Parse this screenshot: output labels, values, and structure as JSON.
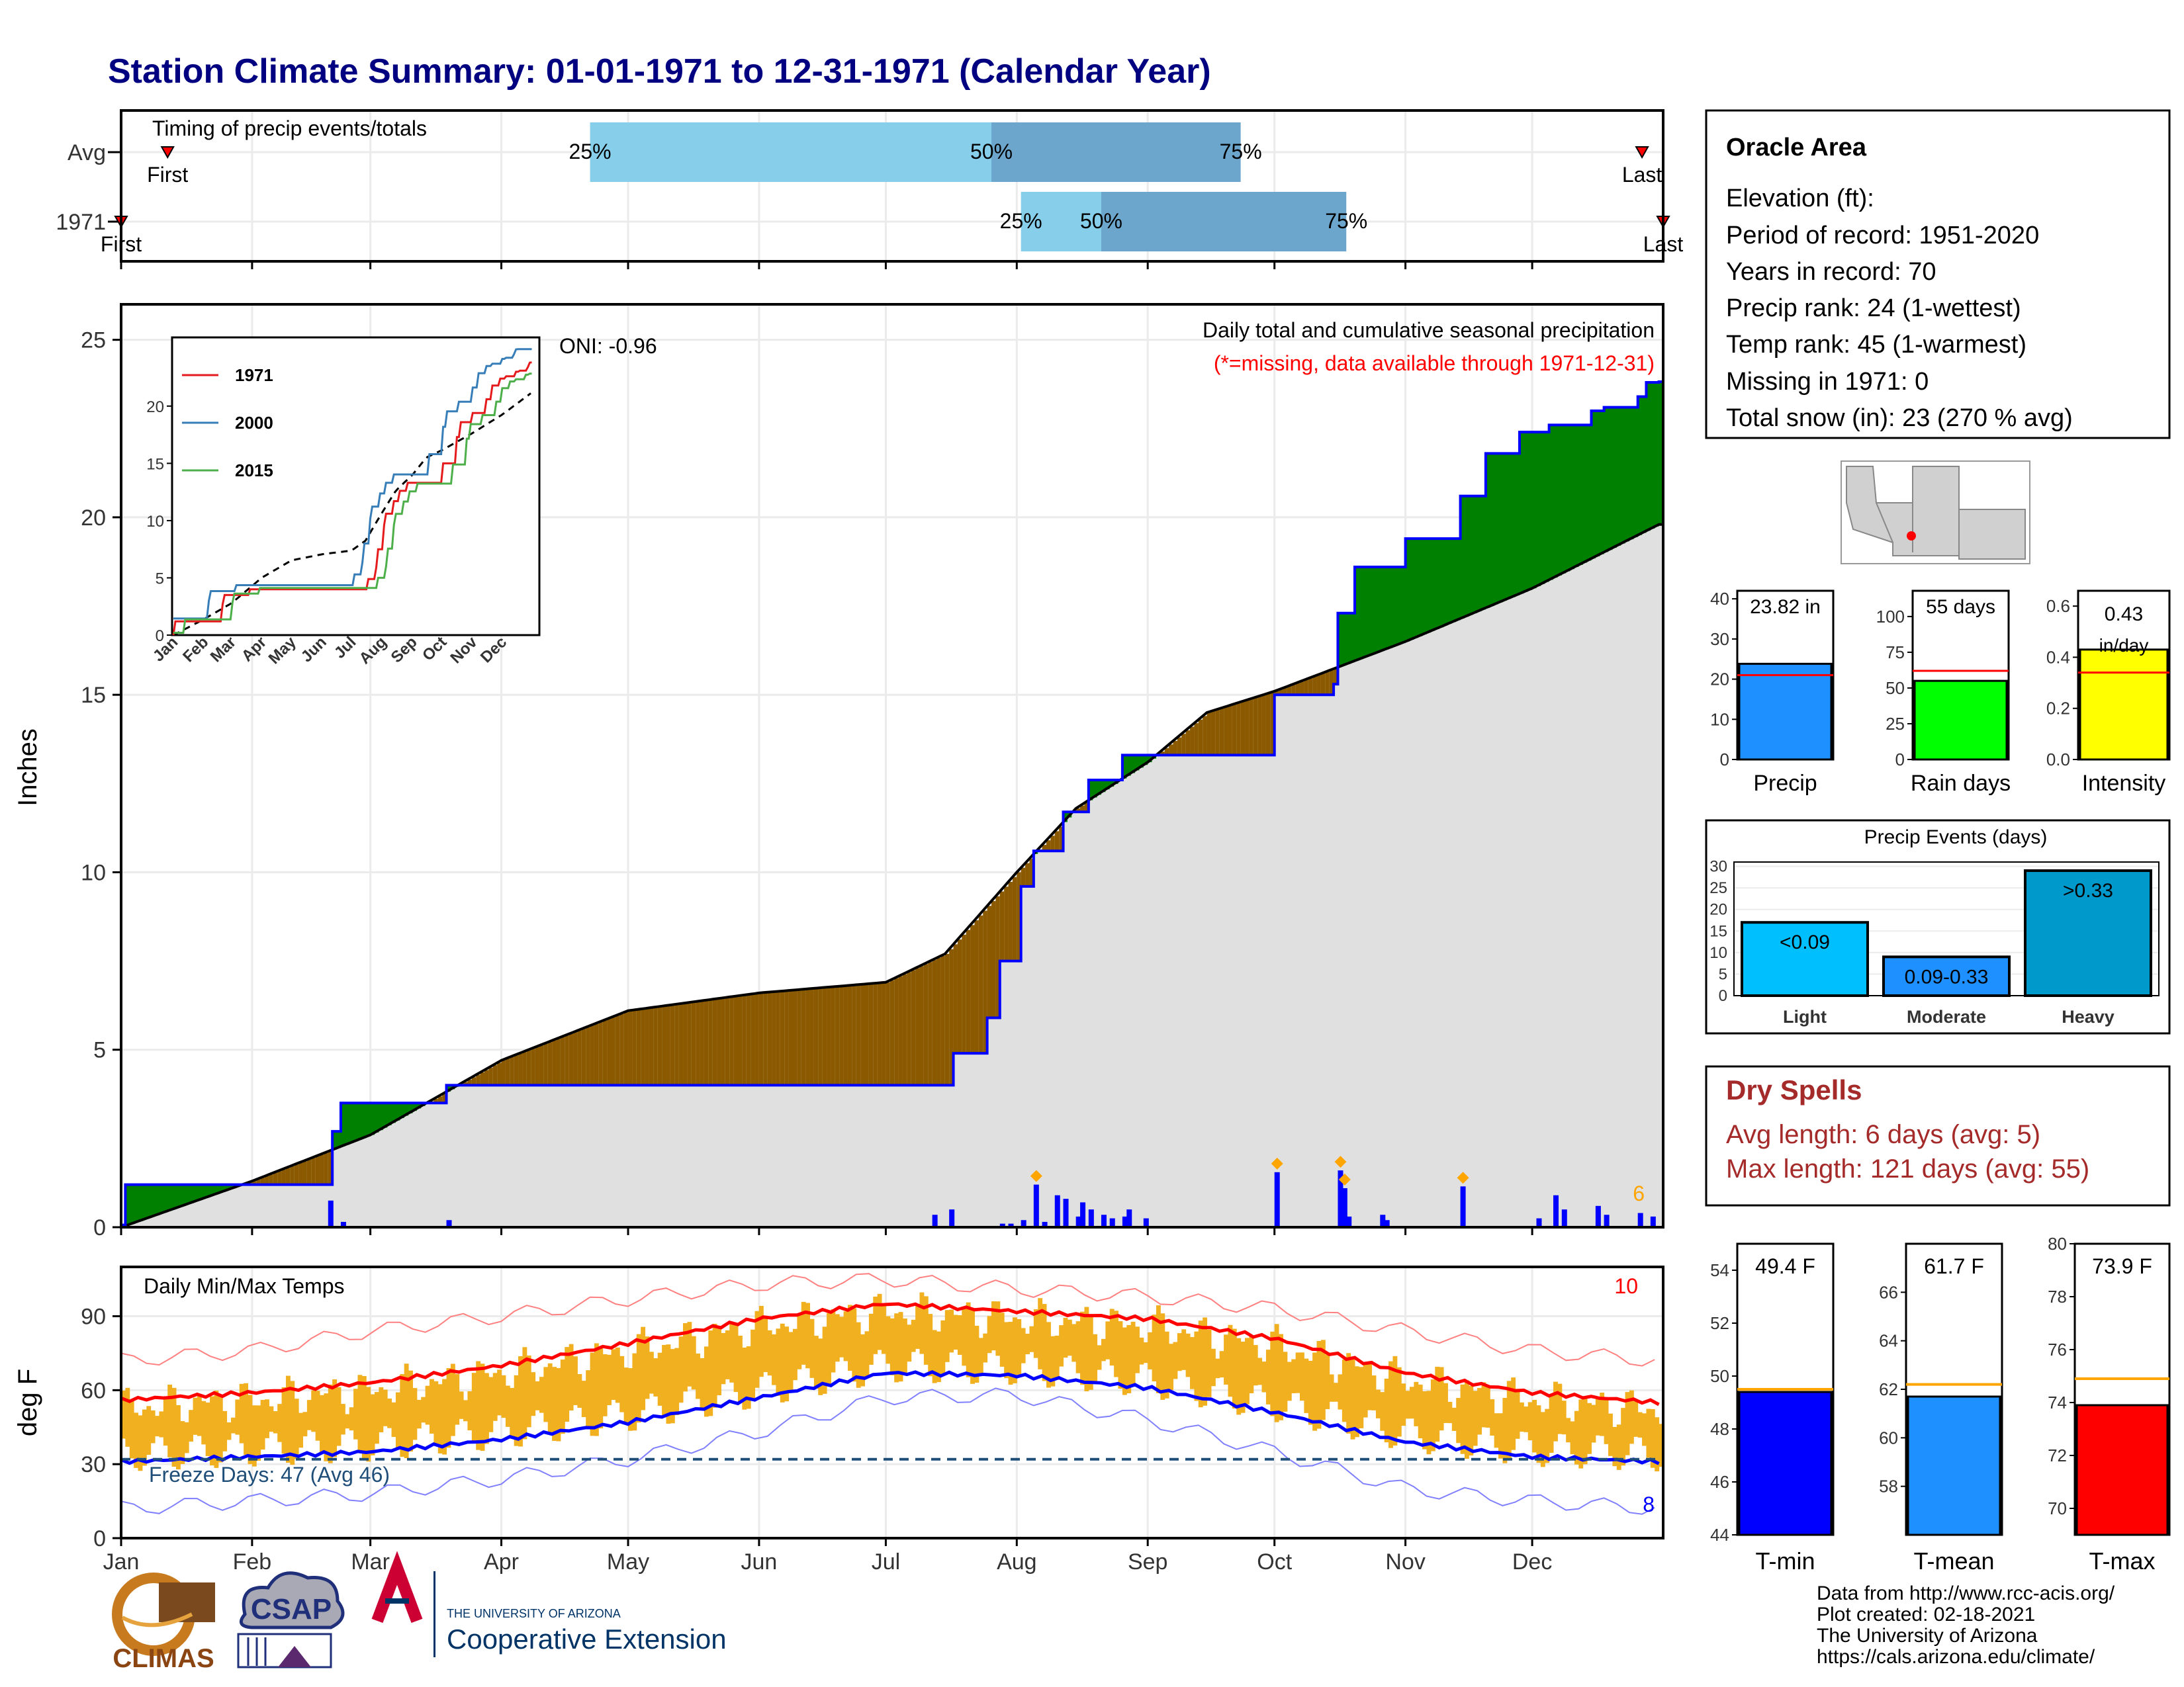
{
  "title": "Station Climate Summary: 01-01-1971 to 12-31-1971 (Calendar Year)",
  "timing": {
    "title": "Timing of precip events/totals",
    "rows": [
      {
        "label": "Avg",
        "first_day": 12,
        "last_day": 361,
        "p25": 112,
        "p50": 207,
        "p75": 266,
        "first_label": "First",
        "last_label": "Last",
        "q_labels": [
          "25%",
          "50%",
          "75%"
        ]
      },
      {
        "label": "1971",
        "first_day": 1,
        "last_day": 366,
        "p25": 214,
        "p50": 233,
        "p75": 291,
        "first_label": "First",
        "last_label": "Last",
        "q_labels": [
          "25%",
          "50%",
          "75%"
        ]
      }
    ]
  },
  "precip_panel": {
    "ylabel": "Inches",
    "ylim": [
      0,
      26
    ],
    "yticks": [
      0,
      5,
      10,
      15,
      20,
      25
    ],
    "title": "Daily total and cumulative seasonal precipitation",
    "subtitle": "(*=missing, data available through 1971-12-31)",
    "oni": "ONI: -0.96",
    "corner_count": "6",
    "colors": {
      "above": "#008000",
      "below": "#8B5A00",
      "normal_fill": "#E0E0E0",
      "observed": "#0000FF",
      "bars": "#0000FF",
      "marker": "#FFA500"
    }
  },
  "inset": {
    "yticks": [
      0,
      5,
      10,
      15,
      20
    ],
    "months": [
      "Jan",
      "Feb",
      "Mar",
      "Apr",
      "May",
      "Jun",
      "Jul",
      "Aug",
      "Sep",
      "Oct",
      "Nov",
      "Dec"
    ],
    "legend": [
      {
        "name": "1971",
        "color": "#E41A1C"
      },
      {
        "name": "2000",
        "color": "#377EB8"
      },
      {
        "name": "2015",
        "color": "#4DAF4A"
      }
    ]
  },
  "temp_panel": {
    "ylabel": "deg F",
    "ylim": [
      0,
      110
    ],
    "yticks": [
      0,
      30,
      60,
      90
    ],
    "title": "Daily Min/Max Temps",
    "freeze_text": "Freeze Days: 47 (Avg 46)",
    "freeze_line": 32,
    "record_high_count": "10",
    "record_low_count": "8"
  },
  "months": [
    "Jan",
    "Feb",
    "Mar",
    "Apr",
    "May",
    "Jun",
    "Jul",
    "Aug",
    "Sep",
    "Oct",
    "Nov",
    "Dec"
  ],
  "station": {
    "name": "Oracle Area",
    "lines": [
      "Elevation (ft):",
      "Period of record: 1951-2020",
      "Years in record: 70",
      "Precip rank: 24 (1-wettest)",
      "Temp rank: 45 (1-warmest)",
      "Missing in 1971: 0",
      "Total snow (in): 23 (270 % avg)"
    ]
  },
  "summary_bars": [
    {
      "name": "Precip",
      "value": 23.82,
      "avg": 21,
      "ylim": [
        0,
        42
      ],
      "ticks": [
        "0",
        "10",
        "20",
        "30",
        "40"
      ],
      "tickvals": [
        0,
        10,
        20,
        30,
        40
      ],
      "label": "23.82 in",
      "color": "#1E90FF"
    },
    {
      "name": "Rain days",
      "value": 55,
      "avg": 62,
      "ylim": [
        0,
        118
      ],
      "ticks": [
        "0",
        "25",
        "50",
        "75",
        "100"
      ],
      "tickvals": [
        0,
        25,
        50,
        75,
        100
      ],
      "label": "55 days",
      "color": "#00FF00"
    },
    {
      "name": "Intensity",
      "value": 0.43,
      "avg": 0.34,
      "ylim": [
        0,
        0.66
      ],
      "ticks": [
        "0.0",
        "0.2",
        "0.4",
        "0.6"
      ],
      "tickvals": [
        0,
        0.2,
        0.4,
        0.6
      ],
      "label": "0.43 in/day",
      "color": "#FFFF00"
    }
  ],
  "precip_events": {
    "title": "Precip Events (days)",
    "ylim": [
      0,
      31
    ],
    "yticks": [
      0,
      5,
      10,
      15,
      20,
      25,
      30
    ],
    "categories": [
      "Light",
      "Moderate",
      "Heavy"
    ],
    "values": [
      17,
      9,
      29
    ],
    "bar_labels": [
      "<0.09",
      "0.09-0.33",
      ">0.33"
    ],
    "colors": [
      "#00BFFF",
      "#1E90FF",
      "#0099CC"
    ]
  },
  "dry_spells": {
    "title": "Dry Spells",
    "lines": [
      "Avg length: 6 days (avg: 5)",
      "Max length: 121 days (avg: 55)"
    ]
  },
  "temp_bars": [
    {
      "name": "T-min",
      "value": 49.4,
      "avg": 49.5,
      "ylim": [
        44,
        55
      ],
      "tickvals": [
        44,
        46,
        48,
        50,
        52,
        54
      ],
      "label": "49.4 F",
      "color": "#0000FF"
    },
    {
      "name": "T-mean",
      "value": 61.7,
      "avg": 62.2,
      "ylim": [
        56,
        68
      ],
      "tickvals": [
        58,
        60,
        62,
        64,
        66
      ],
      "label": "61.7 F",
      "color": "#1E90FF"
    },
    {
      "name": "T-max",
      "value": 73.9,
      "avg": 74.9,
      "ylim": [
        69,
        80
      ],
      "tickvals": [
        70,
        72,
        74,
        76,
        78,
        80
      ],
      "label": "73.9 F",
      "color": "#FF0000"
    }
  ],
  "footer": {
    "lines": [
      "Data from http://www.rcc-acis.org/",
      "Plot created: 02-18-2021",
      "The University of Arizona",
      "https://cals.arizona.edu/climate/"
    ],
    "logos": {
      "climas": "CLIMAS",
      "csap": "CSAP",
      "ua_line1": "THE UNIVERSITY OF ARIZONA",
      "ua_line2": "Cooperative Extension"
    }
  },
  "chart_data": [
    {
      "type": "area",
      "title": "Daily total and cumulative seasonal precipitation",
      "ylabel": "Inches",
      "ylim": [
        0,
        26
      ],
      "series": [
        {
          "name": "Observed cumulative",
          "x": [
            "01-01",
            "01-02",
            "02-19",
            "02-20",
            "02-22",
            "03-19",
            "07-16",
            "07-17",
            "07-25",
            "07-28",
            "08-02",
            "08-05",
            "08-12",
            "08-18",
            "08-26",
            "09-30",
            "10-01",
            "10-15",
            "10-16",
            "10-20",
            "11-01",
            "11-14",
            "11-20",
            "11-28",
            "12-05",
            "12-15",
            "12-18",
            "12-26",
            "12-28",
            "12-31"
          ],
          "values": [
            0,
            1.2,
            1.2,
            2.7,
            3.5,
            4.0,
            4.0,
            4.9,
            5.9,
            7.5,
            9.6,
            10.6,
            11.7,
            12.6,
            13.3,
            13.3,
            15.0,
            15.3,
            17.3,
            18.6,
            19.4,
            20.6,
            21.8,
            22.4,
            22.6,
            23.0,
            23.1,
            23.4,
            23.8,
            23.82
          ]
        },
        {
          "name": "Average cumulative",
          "x": [
            "01-01",
            "02-01",
            "03-01",
            "04-01",
            "05-01",
            "06-01",
            "07-01",
            "07-15",
            "08-01",
            "08-15",
            "09-01",
            "09-15",
            "10-01",
            "11-01",
            "12-01",
            "12-31"
          ],
          "values": [
            0,
            1.3,
            2.6,
            4.7,
            6.1,
            6.6,
            6.9,
            7.7,
            10.0,
            11.8,
            13.1,
            14.5,
            15.1,
            16.5,
            18.0,
            19.8
          ]
        }
      ],
      "daily_precip": [
        {
          "date": "01-01",
          "value": 0.1
        },
        {
          "date": "02-19",
          "value": 0.75
        },
        {
          "date": "02-22",
          "value": 0.15
        },
        {
          "date": "03-19",
          "value": 0.2
        },
        {
          "date": "07-12",
          "value": 0.35
        },
        {
          "date": "07-16",
          "value": 0.5
        },
        {
          "date": "07-28",
          "value": 0.1
        },
        {
          "date": "07-30",
          "value": 0.1
        },
        {
          "date": "08-02",
          "value": 0.2
        },
        {
          "date": "08-05",
          "value": 1.2
        },
        {
          "date": "08-07",
          "value": 0.15
        },
        {
          "date": "08-10",
          "value": 0.9
        },
        {
          "date": "08-12",
          "value": 0.8
        },
        {
          "date": "08-15",
          "value": 0.3
        },
        {
          "date": "08-16",
          "value": 0.7
        },
        {
          "date": "08-18",
          "value": 0.5
        },
        {
          "date": "08-21",
          "value": 0.35
        },
        {
          "date": "08-23",
          "value": 0.25
        },
        {
          "date": "08-26",
          "value": 0.3
        },
        {
          "date": "08-27",
          "value": 0.5
        },
        {
          "date": "08-31",
          "value": 0.25
        },
        {
          "date": "10-01",
          "value": 1.55
        },
        {
          "date": "10-16",
          "value": 1.6
        },
        {
          "date": "10-17",
          "value": 1.1
        },
        {
          "date": "10-18",
          "value": 0.3
        },
        {
          "date": "10-26",
          "value": 0.35
        },
        {
          "date": "10-27",
          "value": 0.2
        },
        {
          "date": "11-14",
          "value": 1.15
        },
        {
          "date": "12-02",
          "value": 0.25
        },
        {
          "date": "12-06",
          "value": 0.9
        },
        {
          "date": "12-08",
          "value": 0.5
        },
        {
          "date": "12-16",
          "value": 0.6
        },
        {
          "date": "12-18",
          "value": 0.35
        },
        {
          "date": "12-26",
          "value": 0.4
        },
        {
          "date": "12-29",
          "value": 0.3
        }
      ]
    },
    {
      "type": "line",
      "title": "Daily Min/Max Temps",
      "ylabel": "deg F",
      "ylim": [
        0,
        110
      ],
      "x": [
        "01-01",
        "02-01",
        "03-01",
        "04-01",
        "05-01",
        "06-01",
        "07-01",
        "08-01",
        "09-01",
        "10-01",
        "11-01",
        "12-01",
        "12-31"
      ],
      "series": [
        {
          "name": "Normal max",
          "values": [
            56,
            59,
            63,
            70,
            79,
            89,
            95,
            92,
            89,
            81,
            67,
            59,
            55
          ]
        },
        {
          "name": "Normal min",
          "values": [
            31,
            33,
            35,
            40,
            47,
            57,
            67,
            66,
            61,
            51,
            39,
            33,
            31
          ]
        },
        {
          "name": "Record high",
          "values": [
            72,
            76,
            84,
            90,
            97,
            103,
            105,
            101,
            98,
            93,
            84,
            76,
            72
          ]
        },
        {
          "name": "Record low",
          "values": [
            12,
            15,
            18,
            24,
            32,
            43,
            57,
            58,
            48,
            35,
            20,
            15,
            12
          ]
        }
      ]
    }
  ]
}
